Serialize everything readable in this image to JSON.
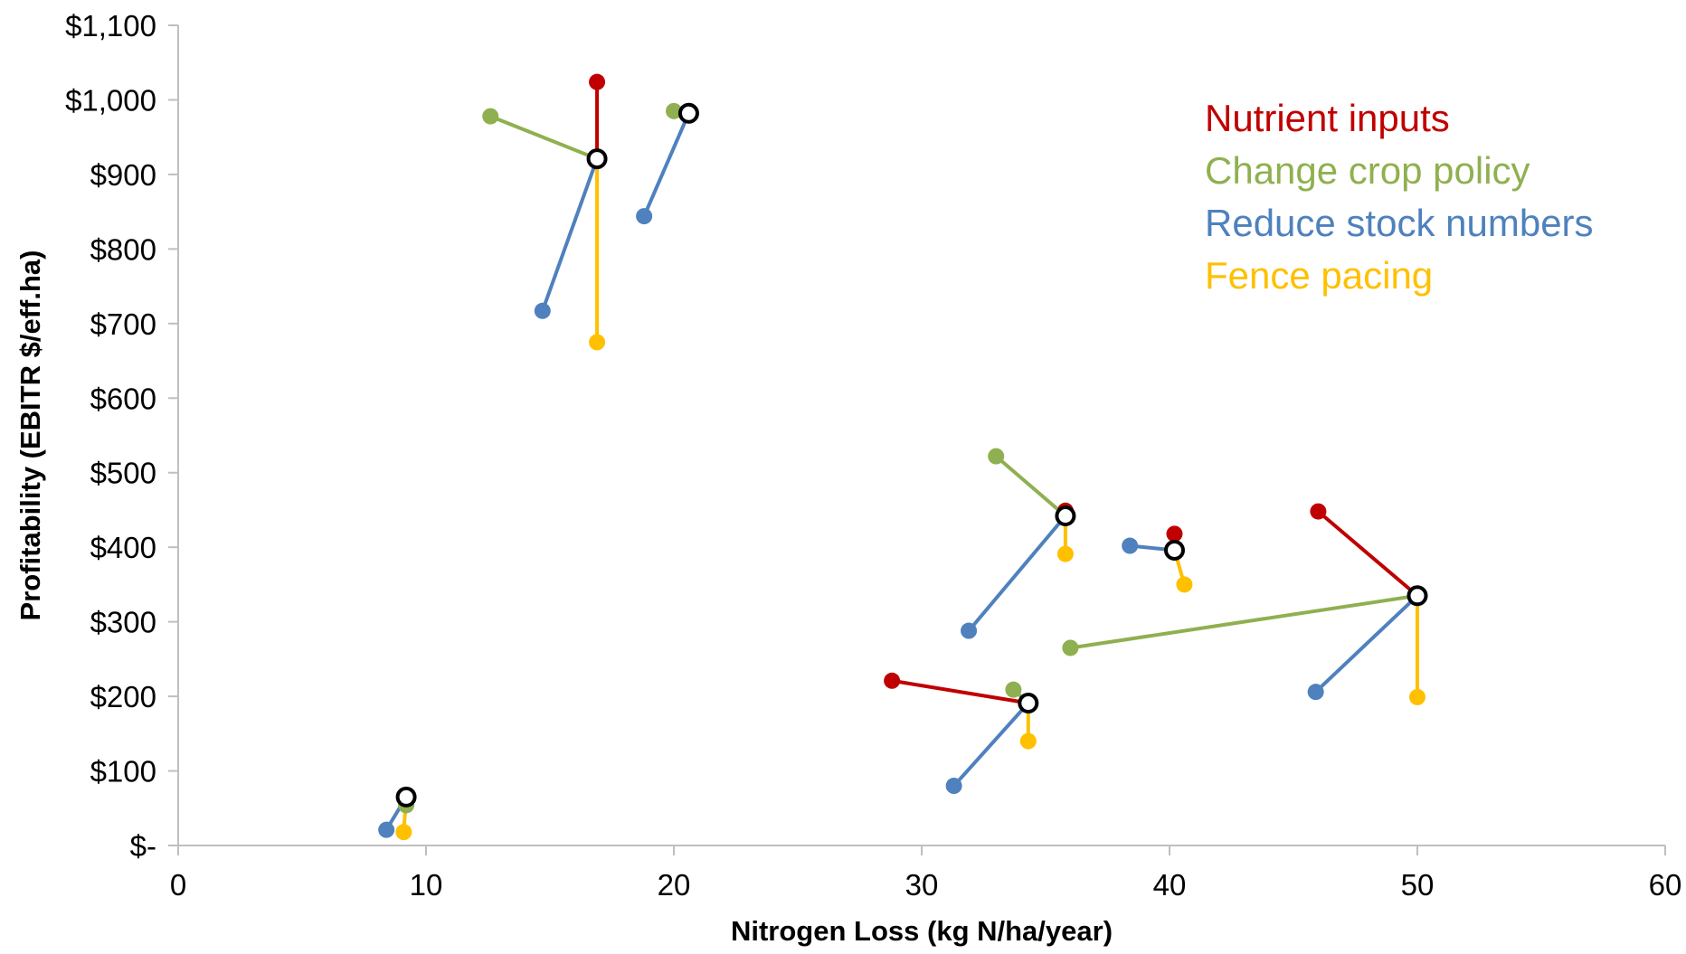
{
  "chart_data": {
    "type": "scatter",
    "xlabel": "Nitrogen Loss (kg N/ha/year)",
    "ylabel": "Profitability (EBITR $/eff.ha)",
    "xlim": [
      0,
      60
    ],
    "ylim": [
      0,
      1100
    ],
    "x_ticks": [
      0,
      10,
      20,
      30,
      40,
      50,
      60
    ],
    "x_tick_labels": [
      "0",
      "10",
      "20",
      "30",
      "40",
      "50",
      "60"
    ],
    "y_ticks": [
      0,
      100,
      200,
      300,
      400,
      500,
      600,
      700,
      800,
      900,
      1000,
      1100
    ],
    "y_tick_labels": [
      "$-",
      "$100",
      "$200",
      "$300",
      "$400",
      "$500",
      "$600",
      "$700",
      "$800",
      "$900",
      "$1,000",
      "$1,100"
    ],
    "grid": false,
    "legend_placement": "top-right",
    "series": [
      {
        "name": "Nutrient inputs",
        "color": "#C00000"
      },
      {
        "name": "Change crop policy",
        "color": "#8FB050"
      },
      {
        "name": "Reduce stock numbers",
        "color": "#4E81BD"
      },
      {
        "name": "Fence pacing",
        "color": "#FFC000"
      }
    ],
    "baseline_marker": {
      "fill": "#ffffff",
      "stroke": "#000000"
    },
    "farms": [
      {
        "baseline": [
          16.9,
          921
        ],
        "changes": [
          [
            0,
            16.9,
            1024
          ],
          [
            1,
            12.6,
            978
          ],
          [
            2,
            14.7,
            717
          ],
          [
            3,
            16.9,
            675
          ]
        ]
      },
      {
        "baseline": [
          20.6,
          982
        ],
        "changes": [
          [
            0,
            20.6,
            982
          ],
          [
            1,
            20.0,
            985
          ],
          [
            2,
            18.8,
            844
          ]
        ]
      },
      {
        "baseline": [
          9.2,
          65
        ],
        "changes": [
          [
            0,
            9.2,
            62
          ],
          [
            1,
            9.2,
            54
          ],
          [
            2,
            8.4,
            21
          ],
          [
            3,
            9.1,
            18
          ]
        ]
      },
      {
        "baseline": [
          34.3,
          191
        ],
        "changes": [
          [
            0,
            28.8,
            221
          ],
          [
            1,
            33.7,
            209
          ],
          [
            2,
            31.3,
            80
          ],
          [
            3,
            34.3,
            140
          ]
        ]
      },
      {
        "baseline": [
          35.8,
          442
        ],
        "changes": [
          [
            0,
            35.8,
            449
          ],
          [
            1,
            33.0,
            522
          ],
          [
            2,
            31.9,
            288
          ],
          [
            3,
            35.8,
            391
          ]
        ]
      },
      {
        "baseline": [
          40.2,
          396
        ],
        "changes": [
          [
            0,
            40.2,
            418
          ],
          [
            2,
            38.4,
            402
          ],
          [
            3,
            40.6,
            350
          ]
        ]
      },
      {
        "baseline": [
          50.0,
          335
        ],
        "changes": [
          [
            0,
            46.0,
            448
          ],
          [
            1,
            36.0,
            265
          ],
          [
            2,
            45.9,
            206
          ],
          [
            3,
            50.0,
            199
          ]
        ]
      }
    ]
  }
}
